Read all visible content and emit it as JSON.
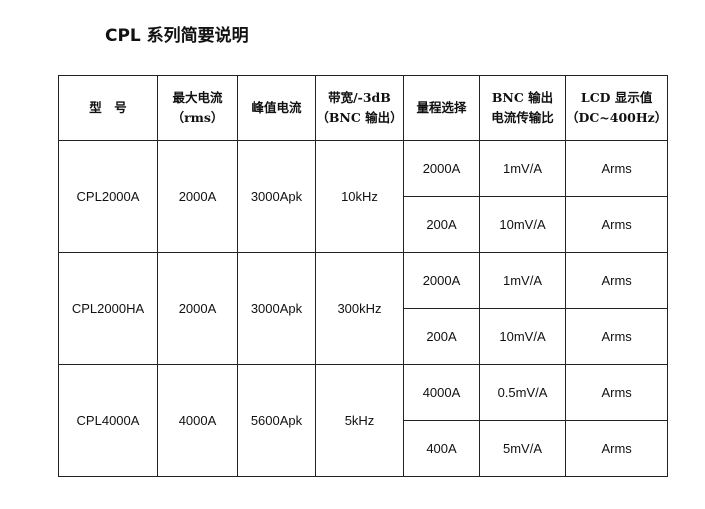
{
  "header": {
    "title": "CPL 系列简要说明"
  },
  "table": {
    "columns": [
      [
        "型　号"
      ],
      [
        "最大电流",
        "（rms）"
      ],
      [
        "峰值电流"
      ],
      [
        "带宽/-3dB",
        "（BNC 输出）"
      ],
      [
        "量程选择"
      ],
      [
        "BNC 输出",
        "电流传输比"
      ],
      [
        "LCD 显示值",
        "（DC~400Hz）"
      ]
    ],
    "groups": [
      {
        "model": "CPL2000A",
        "max_current": "2000A",
        "peak": "3000Apk",
        "bandwidth": "10kHz",
        "ranges": [
          {
            "range": "2000A",
            "ratio": "1mV/A",
            "lcd": "Arms"
          },
          {
            "range": "200A",
            "ratio": "10mV/A",
            "lcd": "Arms"
          }
        ]
      },
      {
        "model": "CPL2000HA",
        "max_current": "2000A",
        "peak": "3000Apk",
        "bandwidth": "300kHz",
        "ranges": [
          {
            "range": "2000A",
            "ratio": "1mV/A",
            "lcd": "Arms"
          },
          {
            "range": "200A",
            "ratio": "10mV/A",
            "lcd": "Arms"
          }
        ]
      },
      {
        "model": "CPL4000A",
        "max_current": "4000A",
        "peak": "5600Apk",
        "bandwidth": "5kHz",
        "ranges": [
          {
            "range": "4000A",
            "ratio": "0.5mV/A",
            "lcd": "Arms"
          },
          {
            "range": "400A",
            "ratio": "5mV/A",
            "lcd": "Arms"
          }
        ]
      }
    ]
  }
}
